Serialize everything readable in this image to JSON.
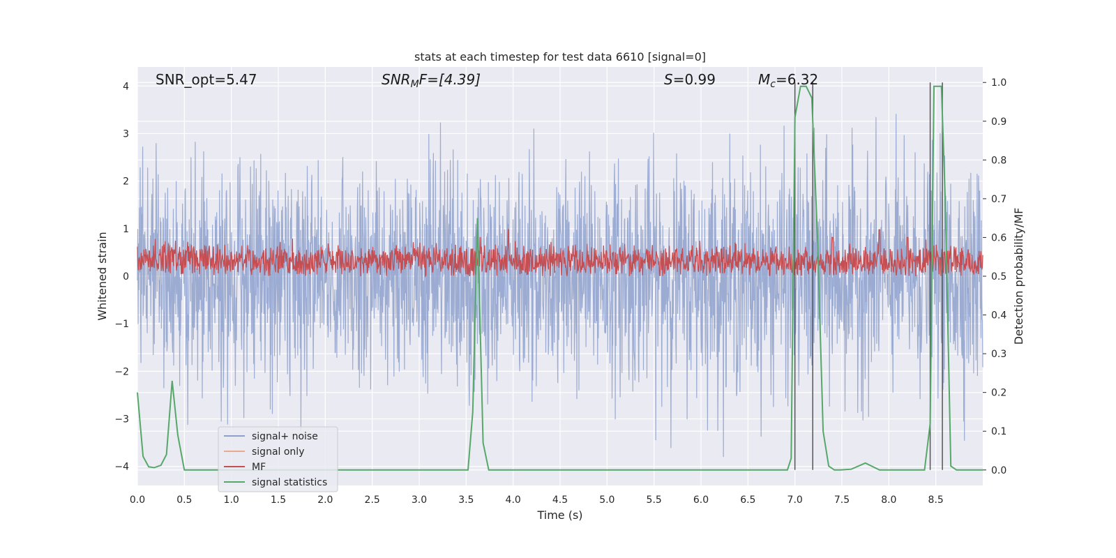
{
  "chart_data": {
    "type": "line",
    "title": "stats at each timestep for test data 6610 [signal=0]",
    "xlabel": "Time (s)",
    "ylabel_left": "Whitened strain",
    "ylabel_right": "Detection probability/MF",
    "xlim": [
      0.0,
      9.0
    ],
    "ylim_left": [
      -4.4,
      4.4
    ],
    "ylim_right": [
      -0.04,
      1.04
    ],
    "x_ticks": [
      "0.0",
      "0.5",
      "1.0",
      "1.5",
      "2.0",
      "2.5",
      "3.0",
      "3.5",
      "4.0",
      "4.5",
      "5.0",
      "5.5",
      "6.0",
      "6.5",
      "7.0",
      "7.5",
      "8.0",
      "8.5"
    ],
    "y_ticks_left": [
      "4",
      "3",
      "2",
      "1",
      "0",
      "−1",
      "−2",
      "−3",
      "−4"
    ],
    "y_ticks_right": [
      "0.0",
      "0.1",
      "0.2",
      "0.3",
      "0.4",
      "0.5",
      "0.6",
      "0.7",
      "0.8",
      "0.9",
      "1.0"
    ],
    "grid": true,
    "legend_position": "lower-left",
    "annotations": {
      "snr_opt": "SNR_opt=5.47",
      "snr_mf_base": "SNR",
      "snr_mf_sub": "M",
      "snr_mf_rest": "F=[4.39]",
      "s_var": "S",
      "s_val": "=0.99",
      "mc_var": "M",
      "mc_sub": "c",
      "mc_val": "=6.32"
    },
    "series": [
      {
        "name": "signal+ noise",
        "color": "#8da0cb",
        "axis": "left",
        "description_range": [
          -3.8,
          3.8
        ]
      },
      {
        "name": "signal only",
        "color": "#e8a98c",
        "axis": "left",
        "x": [],
        "y": []
      },
      {
        "name": "MF",
        "color": "#c44e52",
        "axis": "right",
        "x_range": [
          0.0,
          9.0
        ],
        "baseline": 0.54,
        "range": [
          0.5,
          0.6
        ],
        "peaks": [
          [
            3.65,
            0.6
          ],
          [
            3.95,
            0.62
          ],
          [
            7.4,
            0.6
          ],
          [
            7.9,
            0.62
          ],
          [
            8.2,
            0.6
          ]
        ]
      },
      {
        "name": "signal statistics",
        "color": "#55a868",
        "axis": "right",
        "x": [
          0.0,
          0.06,
          0.12,
          0.18,
          0.25,
          0.31,
          0.37,
          0.43,
          0.5,
          0.56,
          0.62,
          0.68,
          0.75,
          3.45,
          3.52,
          3.57,
          3.62,
          3.68,
          3.74,
          3.8,
          6.85,
          6.92,
          6.96,
          7.0,
          7.06,
          7.12,
          7.18,
          7.24,
          7.3,
          7.36,
          7.42,
          7.48,
          7.6,
          7.75,
          7.9,
          8.0,
          8.38,
          8.44,
          8.48,
          8.52,
          8.56,
          8.6,
          8.66,
          8.72,
          8.8,
          9.0
        ],
        "y": [
          0.2,
          0.035,
          0.008,
          0.006,
          0.012,
          0.04,
          0.23,
          0.09,
          0.0,
          0.0,
          0.0,
          0.0,
          0.0,
          0.0,
          0.0,
          0.15,
          0.65,
          0.07,
          0.0,
          0.0,
          0.0,
          0.0,
          0.03,
          0.91,
          0.99,
          0.99,
          0.96,
          0.6,
          0.1,
          0.01,
          0.0,
          0.0,
          0.002,
          0.018,
          0.0,
          0.0,
          0.0,
          0.12,
          0.99,
          0.99,
          0.99,
          0.7,
          0.01,
          0.0,
          0.0,
          0.0
        ]
      }
    ],
    "vertical_markers_x": [
      7.0,
      7.19,
      8.44,
      8.57
    ]
  }
}
